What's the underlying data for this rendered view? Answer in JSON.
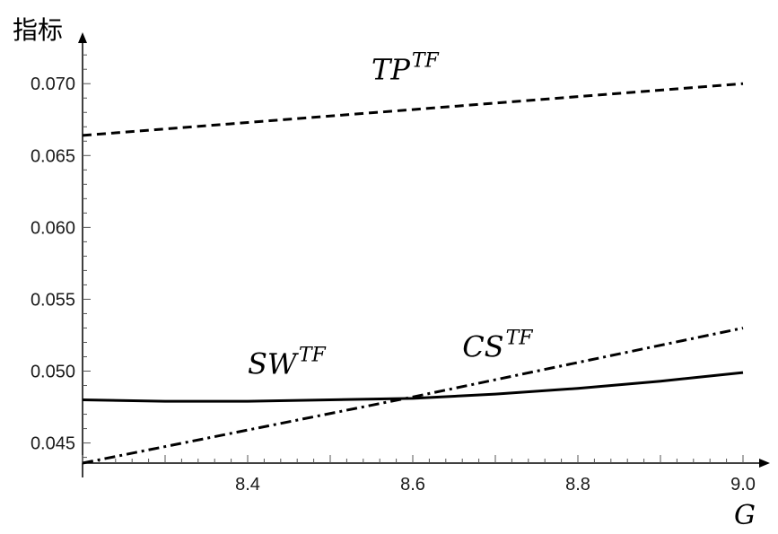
{
  "chart_data": {
    "type": "line",
    "ylabel": "指标",
    "xlabel": "G",
    "xlim": [
      8.2,
      9.0
    ],
    "ylim": [
      0.0436,
      0.0722
    ],
    "x_ticks": [
      {
        "value": 8.4,
        "label": "8.4"
      },
      {
        "value": 8.6,
        "label": "8.6"
      },
      {
        "value": 8.8,
        "label": "8.8"
      },
      {
        "value": 9.0,
        "label": "9.0"
      }
    ],
    "y_ticks": [
      {
        "value": 0.045,
        "label": "0.045"
      },
      {
        "value": 0.05,
        "label": "0.050"
      },
      {
        "value": 0.055,
        "label": "0.055"
      },
      {
        "value": 0.06,
        "label": "0.060"
      },
      {
        "value": 0.065,
        "label": "0.065"
      },
      {
        "value": 0.07,
        "label": "0.070"
      }
    ],
    "series": [
      {
        "name": "TP",
        "name_sup": "TF",
        "style": "dashed",
        "label_at": {
          "x": 8.55,
          "y": 0.0703
        },
        "points": [
          [
            8.2,
            0.0664
          ],
          [
            8.4,
            0.0673
          ],
          [
            8.6,
            0.0682
          ],
          [
            8.8,
            0.0691
          ],
          [
            9.0,
            0.07
          ]
        ]
      },
      {
        "name": "SW",
        "name_sup": "TF",
        "style": "solid",
        "label_at": {
          "x": 8.4,
          "y": 0.0498
        },
        "points": [
          [
            8.2,
            0.048
          ],
          [
            8.3,
            0.0479
          ],
          [
            8.4,
            0.0479
          ],
          [
            8.5,
            0.048
          ],
          [
            8.6,
            0.0481
          ],
          [
            8.7,
            0.0484
          ],
          [
            8.8,
            0.0488
          ],
          [
            8.9,
            0.0493
          ],
          [
            9.0,
            0.0499
          ]
        ]
      },
      {
        "name": "CS",
        "name_sup": "TF",
        "style": "dashdot",
        "label_at": {
          "x": 8.66,
          "y": 0.051
        },
        "points": [
          [
            8.2,
            0.0436
          ],
          [
            8.6,
            0.0482
          ],
          [
            9.0,
            0.053
          ]
        ]
      }
    ]
  }
}
